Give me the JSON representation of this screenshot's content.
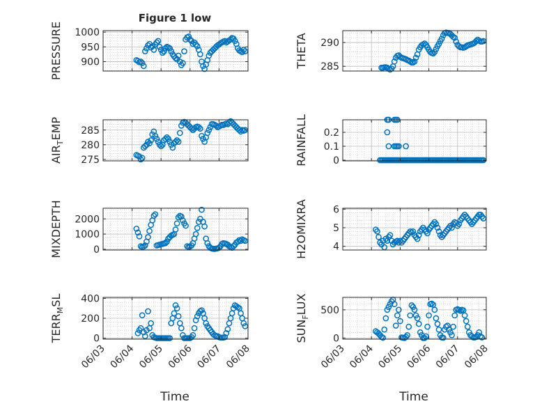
{
  "figure": {
    "title": "Figure 1 low",
    "xlabel": "Time",
    "xticks": [
      "06/03",
      "06/04",
      "06/05",
      "06/06",
      "06/07",
      "06/08"
    ]
  },
  "colors": {
    "marker": "#0072BD",
    "axis": "#262626",
    "grid": "#b4b4b4"
  },
  "chart_data": [
    {
      "type": "scatter",
      "name": "pressure",
      "ylabel": "PRESSURE",
      "ylim": [
        868,
        1005
      ],
      "yticks": [
        900,
        950,
        1000
      ],
      "x": [
        4.15,
        4.2,
        4.25,
        4.3,
        4.35,
        4.4,
        4.45,
        4.5,
        4.55,
        4.6,
        4.65,
        4.7,
        4.75,
        4.8,
        4.85,
        4.9,
        4.95,
        5.0,
        5.05,
        5.1,
        5.15,
        5.2,
        5.25,
        5.3,
        5.35,
        5.4,
        5.45,
        5.5,
        5.55,
        5.6,
        5.65,
        5.7,
        5.75,
        5.8,
        5.85,
        5.9,
        5.95,
        6.0,
        6.05,
        6.1,
        6.15,
        6.2,
        6.25,
        6.3,
        6.35,
        6.4,
        6.45,
        6.5,
        6.55,
        6.6,
        6.65,
        6.7,
        6.75,
        6.8,
        6.85,
        6.9,
        6.95,
        7.0,
        7.05,
        7.1,
        7.15,
        7.2,
        7.25,
        7.3,
        7.35,
        7.4,
        7.45,
        7.5,
        7.55,
        7.6,
        7.65,
        7.7,
        7.75,
        7.8,
        7.85,
        7.9
      ],
      "y": [
        905,
        902,
        898,
        900,
        895,
        885,
        935,
        945,
        955,
        960,
        948,
        952,
        940,
        958,
        965,
        970,
        950,
        940,
        930,
        935,
        945,
        950,
        948,
        945,
        935,
        925,
        918,
        912,
        908,
        920,
        900,
        888,
        895,
        935,
        975,
        982,
        985,
        975,
        970,
        960,
        965,
        958,
        952,
        940,
        925,
        900,
        885,
        875,
        890,
        905,
        920,
        930,
        935,
        940,
        945,
        950,
        955,
        958,
        962,
        965,
        968,
        970,
        965,
        968,
        972,
        975,
        980,
        978,
        970,
        960,
        945,
        938,
        935,
        932,
        940,
        935
      ]
    },
    {
      "type": "scatter",
      "name": "theta",
      "ylabel": "THETA",
      "ylim": [
        284,
        292.5
      ],
      "yticks": [
        285,
        290
      ],
      "x": [
        4.35,
        4.4,
        4.45,
        4.5,
        4.55,
        4.6,
        4.65,
        4.7,
        4.75,
        4.8,
        4.85,
        4.9,
        4.95,
        5.0,
        5.05,
        5.1,
        5.15,
        5.2,
        5.25,
        5.3,
        5.35,
        5.4,
        5.45,
        5.5,
        5.55,
        5.6,
        5.65,
        5.7,
        5.75,
        5.8,
        5.85,
        5.9,
        5.95,
        6.0,
        6.05,
        6.1,
        6.15,
        6.2,
        6.25,
        6.3,
        6.35,
        6.4,
        6.45,
        6.5,
        6.55,
        6.6,
        6.65,
        6.7,
        6.75,
        6.8,
        6.85,
        6.9,
        6.95,
        7.0,
        7.05,
        7.1,
        7.15,
        7.2,
        7.25,
        7.3,
        7.35,
        7.4,
        7.45,
        7.5,
        7.55,
        7.6,
        7.65,
        7.7,
        7.75,
        7.8,
        7.85,
        7.9
      ],
      "y": [
        284.7,
        284.7,
        284.8,
        284.8,
        284.7,
        284.5,
        284.3,
        284.5,
        285.0,
        286.0,
        286.8,
        287.2,
        287.3,
        287.0,
        286.8,
        286.7,
        286.6,
        286.5,
        286.3,
        286.2,
        286.0,
        285.8,
        285.8,
        286.0,
        286.8,
        287.5,
        288.5,
        289.0,
        289.4,
        289.6,
        289.8,
        289.5,
        289.0,
        288.5,
        288.0,
        287.8,
        287.7,
        288.0,
        288.6,
        289.2,
        289.7,
        290.3,
        290.8,
        291.5,
        292.0,
        292.1,
        292.0,
        292.0,
        291.8,
        291.5,
        291.2,
        291.0,
        290.2,
        289.5,
        289.2,
        289.0,
        289.0,
        288.9,
        289.0,
        289.2,
        289.4,
        289.5,
        289.6,
        289.7,
        289.8,
        290.0,
        290.3,
        290.6,
        290.4,
        290.2,
        290.2,
        290.3
      ]
    },
    {
      "type": "scatter",
      "name": "air_temp",
      "ylabel": "AIR_TEMP",
      "ylabel_base": "AIR",
      "ylabel_sub": "T",
      "ylabel_rest": "EMP",
      "ylim": [
        274.5,
        288.5
      ],
      "yticks": [
        275,
        280,
        285
      ],
      "x": [
        4.15,
        4.2,
        4.25,
        4.3,
        4.35,
        4.4,
        4.45,
        4.5,
        4.55,
        4.6,
        4.65,
        4.7,
        4.75,
        4.8,
        4.85,
        4.9,
        4.95,
        5.0,
        5.05,
        5.1,
        5.15,
        5.2,
        5.25,
        5.3,
        5.35,
        5.4,
        5.45,
        5.5,
        5.55,
        5.6,
        5.65,
        5.7,
        5.75,
        5.8,
        5.85,
        5.9,
        5.95,
        6.0,
        6.05,
        6.1,
        6.15,
        6.2,
        6.25,
        6.3,
        6.35,
        6.4,
        6.45,
        6.5,
        6.55,
        6.6,
        6.65,
        6.7,
        6.75,
        6.8,
        6.85,
        6.9,
        6.95,
        7.0,
        7.05,
        7.1,
        7.15,
        7.2,
        7.25,
        7.3,
        7.35,
        7.4,
        7.45,
        7.5,
        7.55,
        7.6,
        7.65,
        7.7,
        7.75,
        7.8,
        7.85,
        7.9
      ],
      "y": [
        276.5,
        276.3,
        276.0,
        275.0,
        275.5,
        279.0,
        279.5,
        280.0,
        281.0,
        280.5,
        281.5,
        283.5,
        284.5,
        283.0,
        282.0,
        281.0,
        280.0,
        279.5,
        280.0,
        281.5,
        282.0,
        282.5,
        282.0,
        281.0,
        280.0,
        279.0,
        280.5,
        281.0,
        281.5,
        281.0,
        284.0,
        286.5,
        287.5,
        287.8,
        287.5,
        287.0,
        286.5,
        286.0,
        285.5,
        285.0,
        285.5,
        286.0,
        286.2,
        286.0,
        285.5,
        283.0,
        282.0,
        281.0,
        282.5,
        284.0,
        285.0,
        286.0,
        287.0,
        287.0,
        286.8,
        286.5,
        286.0,
        286.2,
        286.5,
        286.8,
        286.7,
        287.0,
        287.2,
        287.0,
        287.5,
        288.0,
        287.5,
        287.0,
        286.5,
        286.0,
        285.5,
        285.0,
        284.5,
        285.0,
        284.8,
        285.0
      ]
    },
    {
      "type": "scatter",
      "name": "rainfall",
      "ylabel": "RAINFALL",
      "ylim": [
        -0.005,
        0.29
      ],
      "yticks": [
        0,
        0.1,
        0.2
      ],
      "x": [
        4.3,
        4.35,
        4.4,
        4.45,
        4.5,
        4.55,
        4.6,
        4.65,
        4.7,
        4.75,
        4.8,
        4.85,
        4.9,
        4.95,
        5.0,
        5.05,
        5.1,
        5.15,
        5.2,
        5.25,
        5.3,
        5.35,
        5.4,
        5.45,
        5.5,
        5.55,
        5.6,
        5.65,
        5.7,
        5.75,
        5.8,
        5.85,
        5.9,
        5.95,
        6.0,
        6.05,
        6.1,
        6.15,
        6.2,
        6.25,
        6.3,
        6.35,
        6.4,
        6.45,
        6.5,
        6.55,
        6.6,
        6.65,
        6.7,
        6.75,
        6.8,
        6.85,
        6.9,
        6.95,
        7.0,
        7.05,
        7.1,
        7.15,
        7.2,
        7.25,
        7.3,
        7.35,
        7.4,
        7.45,
        7.5,
        7.55,
        7.6,
        7.65,
        7.7,
        7.75,
        7.8,
        7.85,
        7.9,
        4.55,
        4.6,
        4.55,
        4.6,
        4.8,
        4.85,
        4.9,
        4.95,
        4.8,
        4.85,
        4.9,
        5.2
      ],
      "y": [
        0,
        0,
        0,
        0,
        0,
        0,
        0,
        0,
        0,
        0,
        0,
        0,
        0,
        0,
        0,
        0,
        0,
        0,
        0,
        0,
        0,
        0,
        0,
        0,
        0,
        0,
        0,
        0,
        0,
        0,
        0,
        0,
        0,
        0,
        0,
        0,
        0,
        0,
        0,
        0,
        0,
        0,
        0,
        0,
        0,
        0,
        0,
        0,
        0,
        0,
        0,
        0,
        0,
        0,
        0,
        0,
        0,
        0,
        0,
        0,
        0,
        0,
        0,
        0,
        0,
        0,
        0,
        0,
        0,
        0,
        0,
        0,
        0,
        0.2,
        0.1,
        0.29,
        0.29,
        0.1,
        0.1,
        0.1,
        0.1,
        0.29,
        0.29,
        0.29,
        0.1
      ]
    },
    {
      "type": "scatter",
      "name": "mixdepth",
      "ylabel": "MIXDEPTH",
      "ylim": [
        -50,
        2700
      ],
      "yticks": [
        0,
        1000,
        2000
      ],
      "x": [
        4.15,
        4.2,
        4.25,
        4.3,
        4.35,
        4.4,
        4.45,
        4.5,
        4.55,
        4.6,
        4.65,
        4.7,
        4.75,
        4.8,
        4.85,
        4.9,
        4.95,
        5.0,
        5.05,
        5.1,
        5.15,
        5.2,
        5.25,
        5.3,
        5.35,
        5.4,
        5.45,
        5.5,
        5.55,
        5.6,
        5.65,
        5.7,
        5.75,
        5.8,
        5.85,
        5.9,
        5.95,
        6.0,
        6.05,
        6.1,
        6.15,
        6.2,
        6.25,
        6.3,
        6.35,
        6.4,
        6.45,
        6.5,
        6.55,
        6.6,
        6.65,
        6.7,
        6.75,
        6.8,
        6.85,
        6.9,
        6.95,
        7.0,
        7.05,
        7.1,
        7.15,
        7.2,
        7.25,
        7.3,
        7.35,
        7.4,
        7.45,
        7.5,
        7.55,
        7.6,
        7.65,
        7.7,
        7.75,
        7.8,
        7.85,
        7.9
      ],
      "y": [
        1350,
        1100,
        850,
        200,
        150,
        180,
        250,
        500,
        800,
        1200,
        1600,
        1900,
        2200,
        2300,
        250,
        280,
        300,
        330,
        350,
        380,
        400,
        500,
        700,
        800,
        900,
        950,
        1000,
        1300,
        1700,
        2100,
        2200,
        2150,
        1900,
        1700,
        1550,
        200,
        150,
        180,
        250,
        400,
        700,
        1000,
        1400,
        1800,
        2000,
        2600,
        1800,
        1500,
        700,
        400,
        200,
        100,
        50,
        30,
        20,
        40,
        60,
        100,
        200,
        350,
        400,
        380,
        350,
        300,
        200,
        150,
        100,
        200,
        300,
        450,
        500,
        600,
        550,
        650,
        600,
        550
      ]
    },
    {
      "type": "scatter",
      "name": "h2omixra",
      "ylabel": "H2OMIXRA",
      "ylim": [
        3.8,
        6.05
      ],
      "yticks": [
        4,
        5,
        6
      ],
      "x": [
        4.15,
        4.2,
        4.25,
        4.3,
        4.35,
        4.4,
        4.45,
        4.5,
        4.55,
        4.6,
        4.65,
        4.7,
        4.75,
        4.8,
        4.85,
        4.9,
        4.95,
        5.0,
        5.05,
        5.1,
        5.15,
        5.2,
        5.25,
        5.3,
        5.35,
        5.4,
        5.45,
        5.5,
        5.55,
        5.6,
        5.65,
        5.7,
        5.75,
        5.8,
        5.85,
        5.9,
        5.95,
        6.0,
        6.05,
        6.1,
        6.15,
        6.2,
        6.25,
        6.3,
        6.35,
        6.4,
        6.45,
        6.5,
        6.55,
        6.6,
        6.65,
        6.7,
        6.75,
        6.8,
        6.85,
        6.9,
        6.95,
        7.0,
        7.05,
        7.1,
        7.15,
        7.2,
        7.25,
        7.3,
        7.35,
        7.4,
        7.45,
        7.5,
        7.55,
        7.6,
        7.65,
        7.7,
        7.75,
        7.8,
        7.85,
        7.9
      ],
      "y": [
        4.9,
        4.8,
        4.5,
        4.2,
        4.1,
        4.3,
        3.95,
        4.4,
        4.3,
        4.5,
        4.6,
        4.3,
        4.1,
        4.2,
        4.25,
        4.3,
        4.2,
        4.3,
        4.2,
        4.3,
        4.4,
        4.5,
        4.6,
        4.7,
        4.8,
        4.75,
        4.8,
        4.6,
        4.5,
        4.4,
        4.6,
        4.8,
        4.9,
        5.0,
        4.9,
        4.8,
        4.7,
        4.9,
        5.0,
        5.1,
        5.2,
        5.3,
        5.2,
        5.0,
        4.8,
        4.6,
        4.5,
        4.6,
        4.7,
        4.8,
        4.9,
        5.0,
        5.1,
        5.0,
        5.2,
        5.3,
        5.25,
        5.1,
        5.2,
        5.4,
        5.5,
        5.6,
        5.7,
        5.6,
        5.5,
        5.4,
        5.3,
        5.2,
        5.3,
        5.4,
        5.5,
        5.6,
        5.7,
        5.7,
        5.6,
        5.5
      ]
    },
    {
      "type": "scatter",
      "name": "terr_msl",
      "ylabel": "TERR_MSL",
      "ylabel_base": "TERR",
      "ylabel_sub": "M",
      "ylabel_rest": "SL",
      "ylim": [
        -10,
        410
      ],
      "yticks": [
        0,
        200,
        400
      ],
      "x": [
        4.2,
        4.25,
        4.3,
        4.35,
        4.4,
        4.45,
        4.5,
        4.55,
        4.6,
        4.65,
        4.7,
        4.75,
        4.8,
        4.85,
        4.9,
        4.95,
        5.0,
        5.05,
        5.1,
        5.15,
        5.2,
        5.25,
        5.3,
        5.35,
        5.4,
        5.45,
        5.5,
        5.55,
        5.6,
        5.65,
        5.7,
        5.75,
        5.8,
        5.85,
        5.9,
        5.95,
        6.0,
        6.05,
        6.1,
        6.15,
        6.2,
        6.25,
        6.3,
        6.35,
        6.4,
        6.45,
        6.5,
        6.55,
        6.6,
        6.65,
        6.7,
        6.75,
        6.8,
        6.85,
        6.9,
        6.95,
        7.0,
        7.05,
        7.1,
        7.15,
        7.2,
        7.25,
        7.3,
        7.35,
        7.4,
        7.45,
        7.5,
        7.55,
        7.6,
        7.65,
        7.7,
        7.75,
        7.8,
        7.85,
        7.9
      ],
      "y": [
        50,
        80,
        100,
        230,
        60,
        20,
        80,
        270,
        100,
        150,
        30,
        10,
        5,
        0,
        0,
        0,
        0,
        0,
        0,
        0,
        0,
        0,
        0,
        150,
        200,
        250,
        330,
        300,
        220,
        150,
        100,
        30,
        0,
        0,
        0,
        0,
        0,
        10,
        30,
        100,
        180,
        220,
        250,
        270,
        280,
        250,
        200,
        150,
        120,
        100,
        80,
        60,
        40,
        30,
        20,
        20,
        10,
        5,
        5,
        5,
        10,
        50,
        90,
        150,
        200,
        250,
        300,
        330,
        320,
        310,
        300,
        250,
        200,
        150,
        120
      ]
    },
    {
      "type": "scatter",
      "name": "sun_flux",
      "ylabel": "SUN_FLUX",
      "ylabel_base": "SUN",
      "ylabel_sub": "F",
      "ylabel_rest": "LUX",
      "ylim": [
        -20,
        720
      ],
      "yticks": [
        0,
        500
      ],
      "x": [
        4.15,
        4.2,
        4.25,
        4.3,
        4.35,
        4.4,
        4.45,
        4.5,
        4.55,
        4.6,
        4.65,
        4.7,
        4.75,
        4.8,
        4.85,
        4.9,
        4.95,
        5.0,
        5.05,
        5.1,
        5.15,
        5.2,
        5.25,
        5.3,
        5.35,
        5.4,
        5.45,
        5.5,
        5.55,
        5.6,
        5.65,
        5.7,
        5.75,
        5.8,
        5.85,
        5.9,
        5.95,
        6.0,
        6.05,
        6.1,
        6.15,
        6.2,
        6.25,
        6.3,
        6.35,
        6.4,
        6.45,
        6.5,
        6.55,
        6.6,
        6.65,
        6.7,
        6.75,
        6.8,
        6.85,
        6.9,
        6.95,
        7.0,
        7.05,
        7.1,
        7.15,
        7.2,
        7.25,
        7.3,
        7.35,
        7.4,
        7.45,
        7.5,
        7.55,
        7.6,
        7.65,
        7.7,
        7.75,
        7.8,
        7.85
      ],
      "y": [
        120,
        100,
        80,
        50,
        20,
        5,
        150,
        350,
        500,
        550,
        600,
        650,
        680,
        600,
        220,
        400,
        500,
        300,
        10,
        5,
        0,
        20,
        50,
        200,
        400,
        580,
        550,
        500,
        400,
        350,
        250,
        100,
        50,
        0,
        0,
        30,
        200,
        400,
        600,
        610,
        590,
        500,
        350,
        250,
        150,
        50,
        10,
        5,
        150,
        200,
        220,
        150,
        100,
        50,
        200,
        400,
        500,
        510,
        500,
        480,
        500,
        490,
        400,
        300,
        200,
        100,
        50,
        30,
        10,
        10,
        20,
        50,
        100,
        30,
        10
      ]
    }
  ]
}
